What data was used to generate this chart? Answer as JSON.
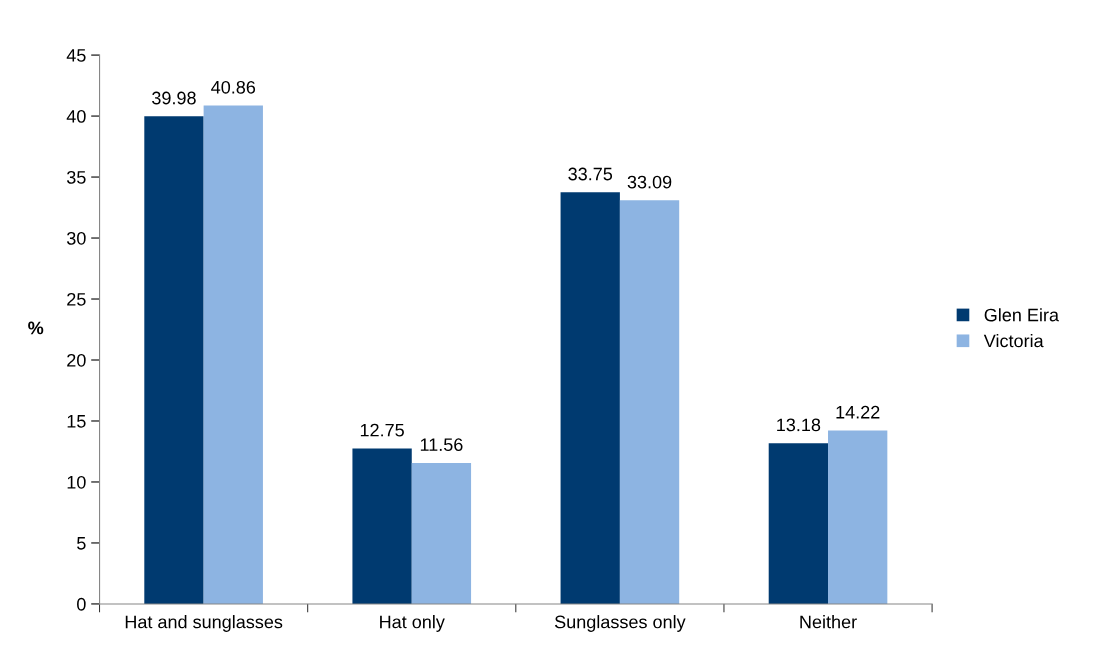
{
  "chart_data": {
    "type": "bar",
    "ylabel": "%",
    "categories": [
      "Hat and sunglasses",
      "Hat only",
      "Sunglasses only",
      "Neither"
    ],
    "series": [
      {
        "name": "Glen Eira",
        "color": "#003a70",
        "values": [
          39.98,
          12.75,
          33.75,
          13.18
        ]
      },
      {
        "name": "Victoria",
        "color": "#8db4e2",
        "values": [
          40.86,
          11.56,
          33.09,
          14.22
        ]
      }
    ],
    "ylim": [
      0,
      45
    ],
    "yticks": [
      0,
      5,
      10,
      15,
      20,
      25,
      30,
      35,
      40,
      45
    ],
    "data_labels": true,
    "legend": "right",
    "grid": false
  }
}
